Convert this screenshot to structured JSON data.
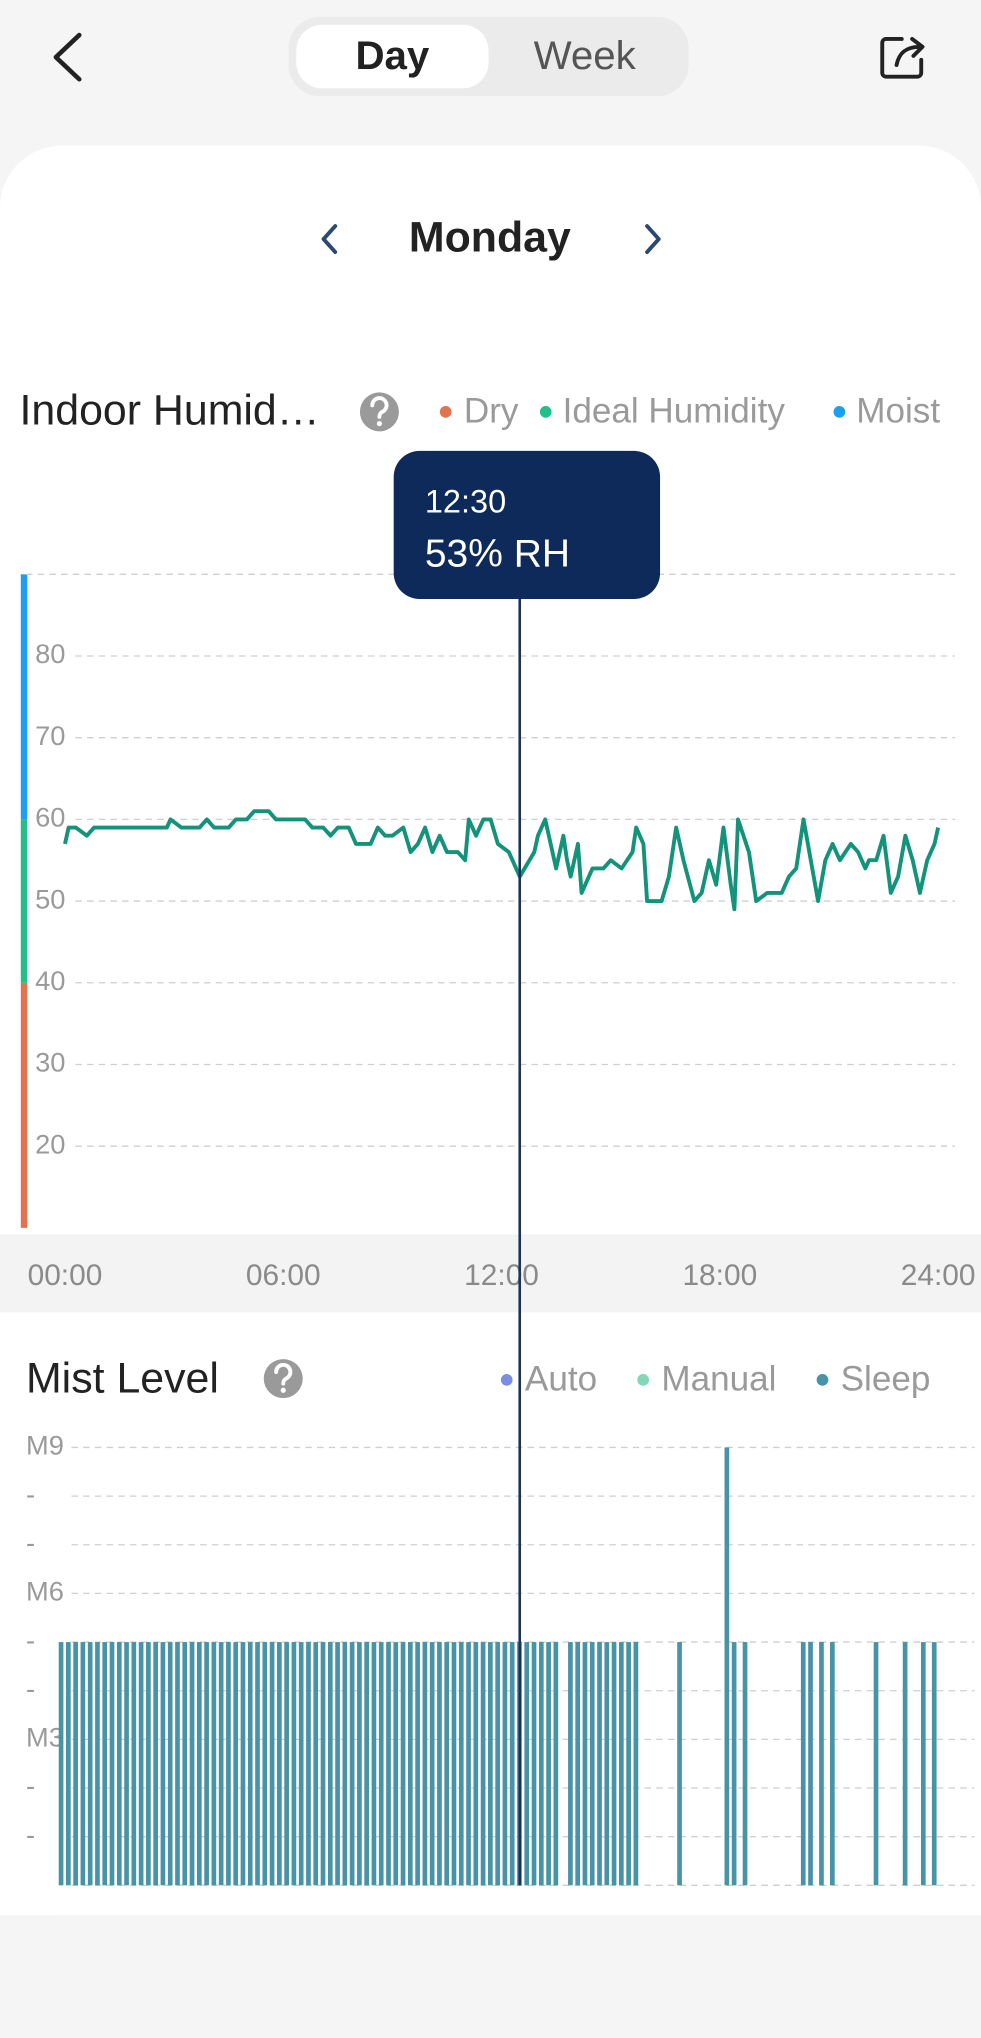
{
  "header": {
    "tabs": [
      "Day",
      "Week"
    ],
    "selected_tab": 0
  },
  "date": "Monday",
  "chart_data": [
    {
      "type": "line",
      "title": "Indoor Humid…",
      "zones": [
        {
          "name": "Dry",
          "color": "#e4714f",
          "from": 10,
          "to": 40
        },
        {
          "name": "Ideal Humidity",
          "color": "#22bf8a",
          "from": 40,
          "to": 60
        },
        {
          "name": "Moist",
          "color": "#1c9ff0",
          "from": 60,
          "to": 90
        }
      ],
      "series": [
        {
          "color": "#13937a",
          "x": [
            0,
            0.1,
            0.3,
            0.6,
            0.8,
            2.8,
            2.9,
            3.2,
            3.7,
            3.9,
            4.1,
            4.5,
            4.7,
            5.0,
            5.2,
            5.6,
            5.8,
            6.6,
            6.8,
            7.1,
            7.3,
            7.5,
            7.8,
            8.0,
            8.4,
            8.6,
            8.8,
            9.0,
            9.3,
            9.5,
            9.7,
            9.9,
            10.1,
            10.3,
            10.5,
            10.8,
            11.0,
            11.1,
            11.3,
            11.5,
            11.7,
            11.9,
            12.2,
            12.5,
            12.9,
            13.0,
            13.2,
            13.4,
            13.5,
            13.7,
            13.8,
            13.9,
            14.1,
            14.2,
            14.5,
            14.8,
            15.0,
            15.3,
            15.6,
            15.7,
            15.9,
            16.0,
            16.4,
            16.6,
            16.8,
            17.0,
            17.3,
            17.5,
            17.7,
            17.9,
            18.1,
            18.3,
            18.4,
            18.5,
            18.8,
            19.0,
            19.3,
            19.7,
            19.9,
            20.1,
            20.3,
            20.5,
            20.7,
            20.9,
            21.1,
            21.3,
            21.6,
            21.8,
            22.0,
            22.1,
            22.3,
            22.5,
            22.7,
            22.9,
            23.1,
            23.3,
            23.5,
            23.7,
            23.9,
            24.0
          ],
          "values": [
            57,
            59,
            59,
            58,
            59,
            59,
            60,
            59,
            59,
            60,
            59,
            59,
            60,
            60,
            61,
            61,
            60,
            60,
            59,
            59,
            58,
            59,
            59,
            57,
            57,
            59,
            58,
            58,
            59,
            56,
            57,
            59,
            56,
            58,
            56,
            56,
            55,
            60,
            58,
            60,
            60,
            57,
            56,
            53,
            56,
            58,
            60,
            56,
            54,
            58,
            55,
            53,
            57,
            51,
            54,
            54,
            55,
            54,
            56,
            59,
            57,
            50,
            50,
            53,
            59,
            55,
            50,
            51,
            55,
            52,
            59,
            52,
            49,
            60,
            56,
            50,
            51,
            51,
            53,
            54,
            60,
            55,
            50,
            55,
            57,
            55,
            57,
            56,
            54,
            55,
            55,
            58,
            51,
            53,
            58,
            55,
            51,
            55,
            57,
            59
          ]
        }
      ],
      "xlim": [
        0,
        24
      ],
      "xticks": [
        {
          "value": 0,
          "label": "00:00"
        },
        {
          "value": 6,
          "label": "06:00"
        },
        {
          "value": 12,
          "label": "12:00"
        },
        {
          "value": 18,
          "label": "18:00"
        },
        {
          "value": 24,
          "label": "24:00"
        }
      ],
      "ylim": [
        10,
        90
      ],
      "yticks": [
        20,
        30,
        40,
        50,
        60,
        70,
        80
      ],
      "grid": true,
      "tooltip": {
        "x": 12.5,
        "label": "12:30",
        "text": "53% RH"
      }
    },
    {
      "type": "bar",
      "title": "Mist Level",
      "series": [
        {
          "name": "Auto",
          "color": "#7b8ee6",
          "x": [],
          "values": []
        },
        {
          "name": "Manual",
          "color": "#80d8b6",
          "x": [],
          "values": []
        },
        {
          "name": "Sleep",
          "color": "#4793a7",
          "x": [
            0,
            0.2,
            0.4,
            0.6,
            0.8,
            1,
            1.2,
            1.4,
            1.6,
            1.8,
            2,
            2.2,
            2.4,
            2.6,
            2.8,
            3,
            3.2,
            3.4,
            3.6,
            3.8,
            4,
            4.2,
            4.4,
            4.6,
            4.8,
            5,
            5.2,
            5.4,
            5.6,
            5.8,
            6,
            6.2,
            6.4,
            6.6,
            6.8,
            7,
            7.2,
            7.4,
            7.6,
            7.8,
            8,
            8.2,
            8.4,
            8.6,
            8.8,
            9,
            9.2,
            9.4,
            9.6,
            9.8,
            10,
            10.2,
            10.4,
            10.6,
            10.8,
            11,
            11.2,
            11.4,
            11.6,
            11.8,
            12,
            12.2,
            12.4,
            12.6,
            12.8,
            13,
            13.2,
            13.4,
            13.6,
            14,
            14.2,
            14.4,
            14.6,
            14.8,
            15,
            15.2,
            15.4,
            15.6,
            15.8,
            17,
            18.3,
            18.5,
            18.8,
            20.4,
            20.6,
            20.9,
            21.2,
            22.4,
            23.2,
            23.7,
            24
          ],
          "values": [
            5,
            5,
            5,
            5,
            5,
            5,
            5,
            5,
            5,
            5,
            5,
            5,
            5,
            5,
            5,
            5,
            5,
            5,
            5,
            5,
            5,
            5,
            5,
            5,
            5,
            5,
            5,
            5,
            5,
            5,
            5,
            5,
            5,
            5,
            5,
            5,
            5,
            5,
            5,
            5,
            5,
            5,
            5,
            5,
            5,
            5,
            5,
            5,
            5,
            5,
            5,
            5,
            5,
            5,
            5,
            5,
            5,
            5,
            5,
            5,
            5,
            5,
            5,
            5,
            5,
            5,
            5,
            5,
            5,
            5,
            5,
            5,
            5,
            5,
            5,
            5,
            5,
            5,
            5,
            5,
            9,
            5,
            5,
            5,
            5,
            5,
            5,
            5,
            5,
            5,
            5
          ]
        }
      ],
      "xlim": [
        0,
        24
      ],
      "ylim": [
        0,
        9
      ],
      "yticks": [
        {
          "value": 9,
          "label": "M9"
        },
        {
          "value": 8,
          "label": "-"
        },
        {
          "value": 7,
          "label": "-"
        },
        {
          "value": 6,
          "label": "M6"
        },
        {
          "value": 5,
          "label": "-"
        },
        {
          "value": 4,
          "label": "-"
        },
        {
          "value": 3,
          "label": "M3"
        },
        {
          "value": 2,
          "label": "-"
        },
        {
          "value": 1,
          "label": "-"
        }
      ],
      "grid": true
    }
  ]
}
